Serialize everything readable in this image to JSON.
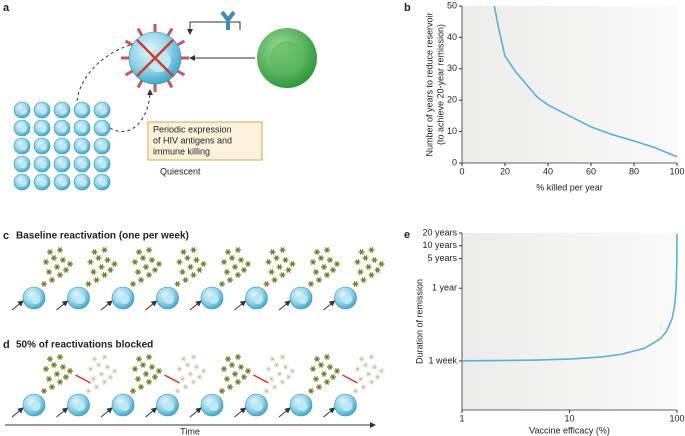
{
  "chart_data": [
    {
      "type": "line",
      "panel": "b",
      "ylabel": [
        "Number of years to reduce reservoir",
        "(to achieve 20-year remission)"
      ],
      "xlabel": "% killed per year",
      "x": [
        15,
        17,
        20,
        25,
        30,
        35,
        40,
        50,
        60,
        70,
        80,
        90,
        100
      ],
      "values": [
        50,
        43,
        34,
        29,
        25,
        21,
        18.5,
        15,
        11.5,
        9,
        7,
        4.8,
        2
      ],
      "color": "#5aafd8",
      "xlim": [
        0,
        100
      ],
      "xticks": [
        0,
        20,
        40,
        60,
        80,
        100
      ],
      "ylim": [
        0,
        50
      ],
      "yticks": [
        0,
        10,
        20,
        30,
        40,
        50
      ]
    },
    {
      "type": "line",
      "panel": "e",
      "ylabel": [
        "Duration of remission"
      ],
      "xlabel": "Vaccine efficacy (%)",
      "x": [
        1,
        2,
        5,
        10,
        20,
        30,
        50,
        70,
        80,
        90,
        95,
        98,
        99,
        99.5,
        99.9
      ],
      "values": [
        1.01,
        1.02,
        1.05,
        1.11,
        1.25,
        1.43,
        2,
        3.33,
        5,
        10,
        20,
        50,
        100,
        200,
        1000
      ],
      "color": "#5aafd8",
      "xlim": [
        1,
        100
      ],
      "xticks": [
        1,
        10,
        100
      ],
      "xlog": true,
      "ylim": [
        0.07,
        1040
      ],
      "ylog": true,
      "yticks": [
        {
          "value": 1,
          "label": "1 week"
        },
        {
          "value": 52,
          "label": "1 year"
        },
        {
          "value": 260,
          "label": "5 years"
        },
        {
          "value": 520,
          "label": "10 years"
        },
        {
          "value": 1040,
          "label": "20 years"
        }
      ]
    }
  ],
  "diagrams": {
    "panel_a": {
      "label": "a",
      "box_text": [
        "Periodic expression",
        "of HIV antigens and",
        "immune killing"
      ],
      "quiescent": "Quiescent"
    },
    "panel_c": {
      "label": "c",
      "title": "Baseline reactivation (one per week)"
    },
    "panel_d": {
      "label": "d",
      "title": "50% of reactivations blocked",
      "time": "Time"
    }
  }
}
